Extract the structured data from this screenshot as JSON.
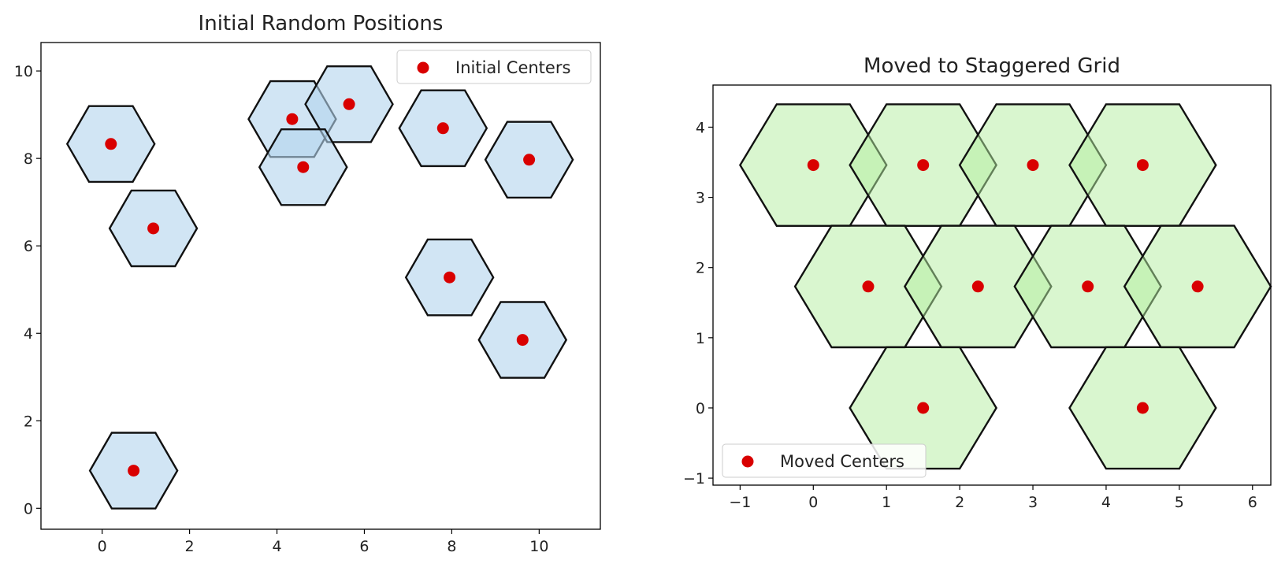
{
  "chart_data": [
    {
      "type": "scatter",
      "title": "Initial Random Positions",
      "xlabel": "",
      "ylabel": "",
      "xlim": [
        -1.4,
        11.4
      ],
      "ylim": [
        -0.48,
        10.65
      ],
      "xticks": [
        0,
        2,
        4,
        6,
        8,
        10
      ],
      "yticks": [
        0,
        2,
        4,
        6,
        8,
        10
      ],
      "xtick_labels": [
        "0",
        "2",
        "4",
        "6",
        "8",
        "10"
      ],
      "ytick_labels": [
        "0",
        "2",
        "4",
        "6",
        "8",
        "10"
      ],
      "hexagon_radius": 1.0,
      "hexagon_orientation": "flat-top",
      "hexagon_fill": "#b3d4ec",
      "hexagon_alpha": 0.6,
      "marker_color": "#d90000",
      "series": [
        {
          "name": "Initial Centers",
          "x": [
            0.2,
            1.17,
            4.35,
            5.65,
            4.6,
            7.8,
            9.77,
            7.95,
            9.62,
            0.72
          ],
          "y": [
            8.33,
            6.4,
            8.9,
            9.24,
            7.8,
            8.69,
            7.97,
            5.28,
            3.85,
            0.86
          ]
        }
      ],
      "legend": {
        "label": "Initial Centers",
        "position": "upper right"
      }
    },
    {
      "type": "scatter",
      "title": "Moved to Staggered Grid",
      "xlabel": "",
      "ylabel": "",
      "xlim": [
        -1.37,
        6.25
      ],
      "ylim": [
        -1.1,
        4.6
      ],
      "xticks": [
        -1,
        0,
        1,
        2,
        3,
        4,
        5,
        6
      ],
      "yticks": [
        -1,
        0,
        1,
        2,
        3,
        4
      ],
      "xtick_labels": [
        "−1",
        "0",
        "1",
        "2",
        "3",
        "4",
        "5",
        "6"
      ],
      "ytick_labels": [
        "−1",
        "0",
        "1",
        "2",
        "3",
        "4"
      ],
      "hexagon_radius": 1.0,
      "hexagon_orientation": "flat-top",
      "hexagon_fill": "#b4eda0",
      "hexagon_alpha": 0.5,
      "marker_color": "#d90000",
      "series": [
        {
          "name": "Moved Centers",
          "x": [
            0,
            1.5,
            3.0,
            4.5,
            0.75,
            2.25,
            3.75,
            5.25,
            1.5,
            4.5
          ],
          "y": [
            3.46,
            3.46,
            3.46,
            3.46,
            1.73,
            1.73,
            1.73,
            1.73,
            0,
            0
          ]
        }
      ],
      "legend": {
        "label": "Moved Centers",
        "position": "lower left"
      }
    }
  ]
}
